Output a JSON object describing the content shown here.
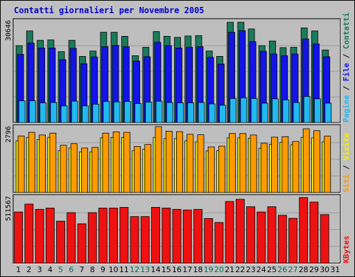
{
  "title": "Contatti giornalieri per Novembre 2005",
  "colors": {
    "contatti": "#1a7a5a",
    "file": "#1414e8",
    "pagine": "#22b8f0",
    "visite": "#f5f000",
    "siti": "#ff9a00",
    "kbytes": "#ee1111",
    "weekend_label": "#006e50",
    "weekday_label": "#000000",
    "separator": "#000000"
  },
  "chart_data": {
    "type": "bar",
    "days": [
      "1",
      "2",
      "3",
      "4",
      "5",
      "6",
      "7",
      "8",
      "9",
      "10",
      "11",
      "12",
      "13",
      "14",
      "15",
      "16",
      "17",
      "18",
      "19",
      "20",
      "21",
      "22",
      "23",
      "24",
      "25",
      "26",
      "27",
      "28",
      "29",
      "30",
      "31"
    ],
    "weekend_days": [
      "5",
      "6",
      "12",
      "13",
      "19",
      "20",
      "26",
      "27"
    ],
    "panels": [
      {
        "id": "top",
        "ymax_label": "30646",
        "ymax": 30646,
        "side_label": {
          "parts": [
            {
              "text": "Pagine",
              "color": "#22b8f0"
            },
            {
              "text": " / ",
              "color": "#000000"
            },
            {
              "text": "File",
              "color": "#1414e8"
            },
            {
              "text": " / ",
              "color": "#000000"
            },
            {
              "text": "Contatti",
              "color": "#1a7a5a"
            }
          ]
        },
        "series": [
          {
            "name": "Contatti",
            "color": "#1a7a5a",
            "values": [
              23000,
              27400,
              24600,
              24700,
              21200,
              24600,
              19800,
              21400,
              27000,
              27000,
              25800,
              20000,
              22500,
              27200,
              25800,
              25500,
              25900,
              26000,
              21400,
              19800,
              30000,
              30000,
              28000,
              23000,
              24400,
              22400,
              22500,
              28300,
              27400,
              21700,
              0
            ]
          },
          {
            "name": "File",
            "color": "#1414e8",
            "values": [
              20400,
              23800,
              22300,
              22300,
              18800,
              22200,
              17600,
              19600,
              22700,
              23100,
              22700,
              18400,
              19700,
              24000,
              23000,
              22300,
              22500,
              22700,
              19500,
              17500,
              27000,
              27500,
              24200,
              21300,
              20500,
              20000,
              20500,
              25000,
              23500,
              19700,
              0
            ]
          },
          {
            "name": "Pagine",
            "color": "#22b8f0",
            "values": [
              6500,
              6500,
              5900,
              6000,
              5000,
              6400,
              5000,
              5500,
              6300,
              6200,
              6300,
              5700,
              6100,
              6400,
              6000,
              5900,
              5900,
              6000,
              5600,
              5200,
              7200,
              7400,
              7200,
              5800,
              7100,
              6800,
              6000,
              7800,
              7100,
              5800,
              0
            ]
          }
        ]
      },
      {
        "id": "mid",
        "ymax_label": "2796",
        "ymax": 2796,
        "side_label": {
          "parts": [
            {
              "text": "Siti",
              "color": "#ff9a00"
            },
            {
              "text": " / ",
              "color": "#000000"
            },
            {
              "text": "Visite",
              "color": "#f5f000"
            }
          ]
        },
        "series": [
          {
            "name": "Visite",
            "color": "#f5f000",
            "values": [
              2180,
              2320,
              2230,
              2320,
              1760,
              1870,
              1710,
              1710,
              2300,
              2320,
              2320,
              1760,
              1820,
              2320,
              2270,
              2270,
              2180,
              2130,
              1750,
              1760,
              2300,
              2300,
              2280,
              1860,
              2020,
              2110,
              2010,
              2320,
              2300,
              2130,
              0
            ]
          },
          {
            "name": "Siti",
            "color": "#ff9a00",
            "values": [
              2380,
              2530,
              2420,
              2500,
              1990,
              2050,
              1870,
              1900,
              2500,
              2550,
              2530,
              1940,
              2020,
              2770,
              2580,
              2560,
              2450,
              2430,
              1920,
              1950,
              2480,
              2480,
              2420,
              2070,
              2330,
              2350,
              2150,
              2680,
              2600,
              2370,
              0
            ]
          }
        ]
      },
      {
        "id": "bot",
        "ymax_label": "511567",
        "ymax": 511567,
        "side_label": {
          "parts": [
            {
              "text": "KBytes",
              "color": "#ee1111"
            }
          ]
        },
        "series": [
          {
            "name": "KBytes",
            "color": "#ee1111",
            "values": [
              390000,
              450000,
              410000,
              420000,
              320000,
              385000,
              300000,
              385000,
              420000,
              420000,
              425000,
              355000,
              355000,
              425000,
              420000,
              410000,
              405000,
              410000,
              340000,
              310000,
              470000,
              486000,
              430000,
              390000,
              430000,
              365000,
              342000,
              500000,
              465000,
              370000,
              0
            ]
          }
        ]
      }
    ]
  }
}
